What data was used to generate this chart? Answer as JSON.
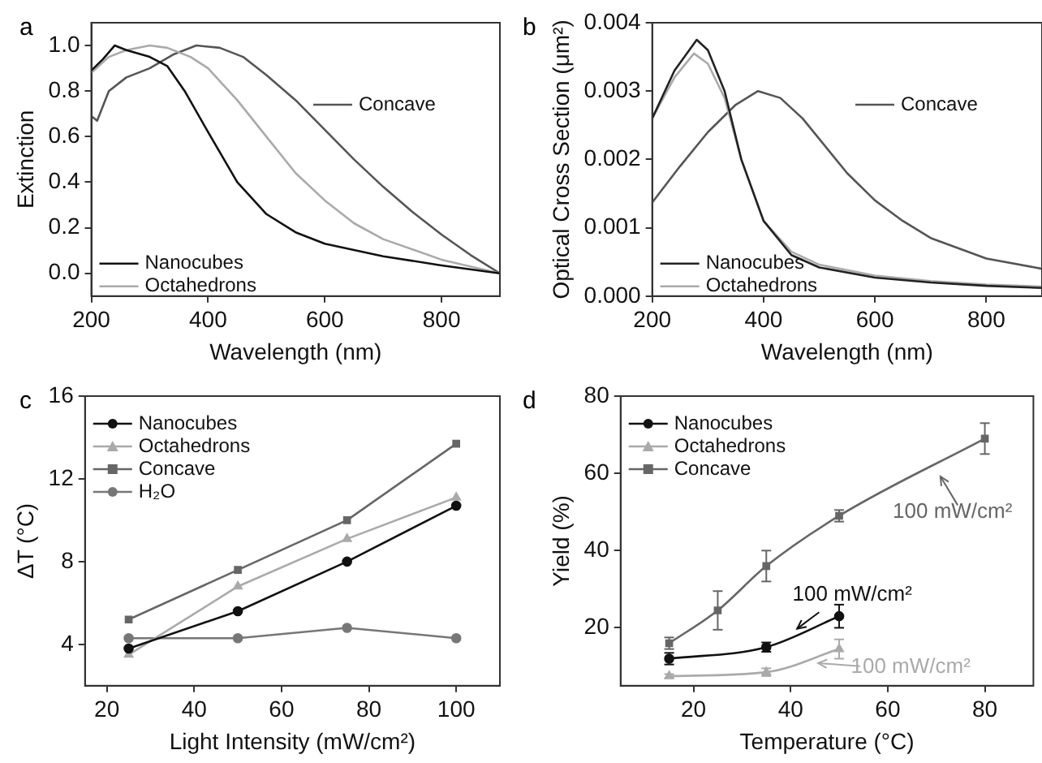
{
  "chart_data": [
    {
      "type": "line",
      "title": "a",
      "xlabel": "Wavelength (nm)",
      "ylabel": "Extinction",
      "xlim": [
        200,
        900
      ],
      "xticks": [
        200,
        400,
        600,
        800
      ],
      "ylim": [
        -0.1,
        1.1
      ],
      "yticks": [
        {
          "value": 0,
          "label": "0.0"
        },
        {
          "value": 0.2,
          "label": "0.2"
        },
        {
          "value": 0.4,
          "label": "0.4"
        },
        {
          "value": 0.6,
          "label": "0.6"
        },
        {
          "value": 0.8,
          "label": "0.8"
        },
        {
          "value": 1,
          "label": "1.0"
        }
      ],
      "grid": false,
      "legend": "bottom left",
      "marker": "none",
      "series": [
        {
          "name": "Nanocubes",
          "color": "#111111",
          "x": [
            200,
            220,
            240,
            260,
            300,
            330,
            360,
            400,
            450,
            500,
            550,
            600,
            700,
            800,
            900
          ],
          "values": [
            0.89,
            0.94,
            1.0,
            0.98,
            0.95,
            0.91,
            0.8,
            0.62,
            0.4,
            0.26,
            0.18,
            0.13,
            0.075,
            0.035,
            0.0
          ]
        },
        {
          "name": "Octahedrons",
          "color": "#aaaaaa",
          "x": [
            200,
            230,
            260,
            300,
            330,
            370,
            400,
            450,
            500,
            550,
            600,
            650,
            700,
            800,
            900
          ],
          "values": [
            0.88,
            0.95,
            0.98,
            1.0,
            0.99,
            0.95,
            0.9,
            0.76,
            0.6,
            0.44,
            0.32,
            0.22,
            0.15,
            0.06,
            0.0
          ]
        },
        {
          "name": "Concave",
          "color": "#555555",
          "x": [
            200,
            210,
            230,
            260,
            300,
            340,
            380,
            420,
            460,
            500,
            550,
            600,
            650,
            700,
            750,
            800,
            850,
            900
          ],
          "values": [
            0.69,
            0.67,
            0.8,
            0.86,
            0.9,
            0.96,
            1.0,
            0.99,
            0.95,
            0.87,
            0.76,
            0.63,
            0.5,
            0.38,
            0.27,
            0.17,
            0.08,
            0.0
          ]
        }
      ]
    },
    {
      "type": "line",
      "title": "b",
      "xlabel": "Wavelength (nm)",
      "ylabel": "Optical Cross Section (μm²)",
      "xlim": [
        200,
        900
      ],
      "xticks": [
        200,
        400,
        600,
        800
      ],
      "ylim": [
        0,
        0.004
      ],
      "yticks": [
        {
          "value": 0,
          "label": "0.000"
        },
        {
          "value": 0.001,
          "label": "0.001"
        },
        {
          "value": 0.002,
          "label": "0.002"
        },
        {
          "value": 0.003,
          "label": "0.003"
        },
        {
          "value": 0.004,
          "label": "0.004"
        }
      ],
      "grid": false,
      "legend": "bottom left",
      "marker": "none",
      "series": [
        {
          "name": "Nanocubes",
          "color": "#222222",
          "x": [
            200,
            240,
            280,
            300,
            330,
            360,
            400,
            450,
            500,
            600,
            700,
            800,
            900
          ],
          "values": [
            0.0026,
            0.0033,
            0.00375,
            0.0036,
            0.003,
            0.002,
            0.0011,
            0.0006,
            0.00042,
            0.00027,
            0.0002,
            0.00015,
            0.00012
          ]
        },
        {
          "name": "Octahedrons",
          "color": "#aaaaaa",
          "x": [
            200,
            240,
            275,
            300,
            330,
            360,
            400,
            450,
            500,
            600,
            700,
            800,
            900
          ],
          "values": [
            0.0026,
            0.0032,
            0.00355,
            0.0034,
            0.0029,
            0.002,
            0.0011,
            0.00065,
            0.00046,
            0.0003,
            0.00022,
            0.00017,
            0.00014
          ]
        },
        {
          "name": "Concave",
          "color": "#555555",
          "x": [
            200,
            250,
            300,
            350,
            390,
            430,
            470,
            500,
            550,
            600,
            650,
            700,
            800,
            900
          ],
          "values": [
            0.00137,
            0.0019,
            0.0024,
            0.0028,
            0.003,
            0.0029,
            0.0026,
            0.0023,
            0.0018,
            0.0014,
            0.0011,
            0.00085,
            0.00055,
            0.0004
          ]
        }
      ]
    },
    {
      "type": "line",
      "title": "c",
      "xlabel": "Light Intensity (mW/cm²)",
      "ylabel": "ΔT (°C)",
      "xlim": [
        15,
        110
      ],
      "xticks": [
        20,
        40,
        60,
        80,
        100
      ],
      "ylim": [
        2,
        16
      ],
      "yticks": [
        4,
        8,
        12,
        16
      ],
      "grid": false,
      "legend": "top left",
      "series": [
        {
          "name": "Nanocubes",
          "color": "#111111",
          "marker": "circle",
          "x": [
            25,
            50,
            75,
            100
          ],
          "values": [
            3.8,
            5.6,
            8.0,
            10.7
          ]
        },
        {
          "name": "Octahedrons",
          "color": "#aaaaaa",
          "marker": "triangle",
          "x": [
            25,
            50,
            75,
            100
          ],
          "values": [
            3.5,
            6.8,
            9.1,
            11.1
          ]
        },
        {
          "name": "Concave",
          "color": "#666666",
          "marker": "square",
          "x": [
            25,
            50,
            75,
            100
          ],
          "values": [
            5.2,
            7.6,
            10.0,
            13.7
          ]
        },
        {
          "name": "H₂O",
          "color": "#777777",
          "marker": "circle",
          "x": [
            25,
            50,
            75,
            100
          ],
          "values": [
            4.3,
            4.3,
            4.8,
            4.3
          ]
        }
      ]
    },
    {
      "type": "line",
      "title": "d",
      "xlabel": "Temperature (°C)",
      "ylabel": "Yield (%)",
      "xlim": [
        5,
        90
      ],
      "xticks": [
        20,
        40,
        60,
        80
      ],
      "ylim": [
        5,
        80
      ],
      "yticks": [
        20,
        40,
        60,
        80
      ],
      "grid": false,
      "legend": "top left",
      "annotations": [
        {
          "text": "100 mW/cm²",
          "x": 40,
          "y": 18.5
        },
        {
          "text": "100 mW/cm²",
          "x": 44,
          "y": 11
        },
        {
          "text": "100 mW/cm²",
          "x": 70,
          "y": 61
        }
      ],
      "series": [
        {
          "name": "Nanocubes",
          "color": "#111111",
          "marker": "circle",
          "x": [
            15,
            35,
            50
          ],
          "values": [
            12,
            15,
            23
          ],
          "errors": [
            1.5,
            1.2,
            3
          ]
        },
        {
          "name": "Octahedrons",
          "color": "#aaaaaa",
          "marker": "triangle",
          "x": [
            15,
            35,
            50
          ],
          "values": [
            7.5,
            8.5,
            14.5
          ],
          "errors": [
            0.5,
            1,
            2.5
          ]
        },
        {
          "name": "Concave",
          "color": "#666666",
          "marker": "square",
          "x": [
            15,
            25,
            35,
            50,
            80
          ],
          "values": [
            16,
            24.5,
            36,
            49,
            69
          ],
          "errors": [
            1.5,
            5,
            4,
            1.5,
            4
          ]
        }
      ]
    }
  ]
}
